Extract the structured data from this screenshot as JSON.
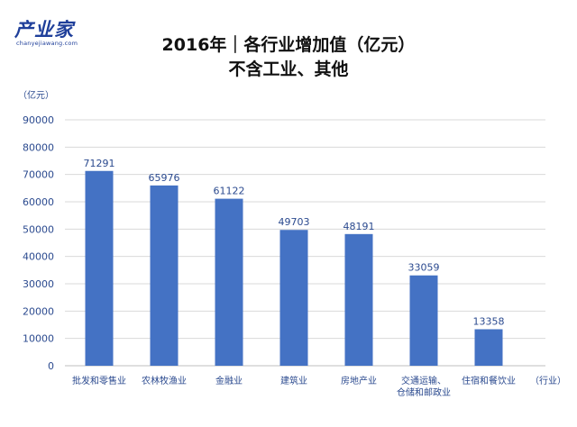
{
  "logo": {
    "brand": "产业家",
    "site": "chanyejiawang.com"
  },
  "chart_data": {
    "type": "bar",
    "title": "2016年｜各行业增加值（亿元）",
    "subtitle": "不含工业、其他",
    "ylabel": "（亿元）",
    "xlabel": "（行业）",
    "ylim": [
      0,
      90000
    ],
    "yticks": [
      0,
      10000,
      20000,
      30000,
      40000,
      50000,
      60000,
      70000,
      80000,
      90000
    ],
    "categories": [
      [
        "批发和零售业"
      ],
      [
        "农林牧渔业"
      ],
      [
        "金融业"
      ],
      [
        "建筑业"
      ],
      [
        "房地产业"
      ],
      [
        "交通运输、",
        "仓储和邮政业"
      ],
      [
        "住宿和餐饮业"
      ]
    ],
    "values": [
      71291,
      65976,
      61122,
      49703,
      48191,
      33059,
      13358
    ],
    "data_labels": [
      "71291",
      "65976",
      "61122",
      "49703",
      "48191",
      "33059",
      "13358"
    ],
    "bar_color": "#4472c4",
    "grid": true,
    "legend": "none"
  }
}
